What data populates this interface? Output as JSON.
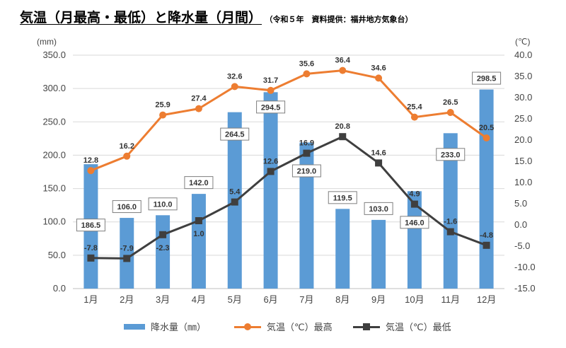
{
  "title": {
    "main": "気温（月最高・最低）と降水量（月間）",
    "sub": "（令和５年　資料提供：福井地方気象台）"
  },
  "colors": {
    "bar": "#5b9bd5",
    "max_line": "#ed7d31",
    "min_line": "#3f3f3f",
    "grid": "#d9d9d9"
  },
  "axes": {
    "left_unit": "(mm)",
    "right_unit": "(℃)"
  },
  "legend": {
    "precip": "降水量（㎜）",
    "max": "気温（℃）最高",
    "min": "気温（℃）最低"
  },
  "chart_data": {
    "type": "bar+line",
    "categories": [
      "1月",
      "2月",
      "3月",
      "4月",
      "5月",
      "6月",
      "7月",
      "8月",
      "9月",
      "10月",
      "11月",
      "12月"
    ],
    "left_axis": {
      "unit": "(mm)",
      "ylim": [
        0,
        350
      ],
      "ticks": [
        "0.0",
        "50.0",
        "100.0",
        "150.0",
        "200.0",
        "250.0",
        "300.0",
        "350.0"
      ]
    },
    "right_axis": {
      "unit": "(℃)",
      "ylim": [
        -15,
        40
      ],
      "ticks": [
        "-15.0",
        "-10.0",
        "-5.0",
        "0.0",
        "5.0",
        "10.0",
        "15.0",
        "20.0",
        "25.0",
        "30.0",
        "35.0",
        "40.0"
      ]
    },
    "series": [
      {
        "name": "降水量（㎜）",
        "type": "bar",
        "axis": "left",
        "values": [
          186.5,
          106.0,
          110.0,
          142.0,
          264.5,
          294.5,
          219.0,
          119.5,
          103.0,
          146.0,
          233.0,
          298.5
        ],
        "labels": [
          "186.5",
          "106.0",
          "110.0",
          "142.0",
          "264.5",
          "294.5",
          "219.0",
          "119.5",
          "103.0",
          "146.0",
          "233.0",
          "298.5"
        ]
      },
      {
        "name": "気温（℃）最高",
        "type": "line",
        "axis": "right",
        "values": [
          12.8,
          16.2,
          25.9,
          27.4,
          32.6,
          31.7,
          35.6,
          36.4,
          34.6,
          25.4,
          26.5,
          20.5
        ],
        "labels": [
          "12.8",
          "16.2",
          "25.9",
          "27.4",
          "32.6",
          "31.7",
          "35.6",
          "36.4",
          "34.6",
          "25.4",
          "26.5",
          "20.5"
        ]
      },
      {
        "name": "気温（℃）最低",
        "type": "line",
        "axis": "right",
        "values": [
          -7.8,
          -7.9,
          -2.3,
          1.0,
          5.4,
          12.6,
          16.9,
          20.8,
          14.6,
          4.9,
          -1.6,
          -4.8
        ],
        "labels": [
          "-7.8",
          "-7.9",
          "-2.3",
          "1.0",
          "5.4",
          "12.6",
          "16.9",
          "20.8",
          "14.6",
          "4.9",
          "-1.6",
          "-4.8"
        ]
      }
    ],
    "grid": true,
    "legend_position": "bottom"
  }
}
